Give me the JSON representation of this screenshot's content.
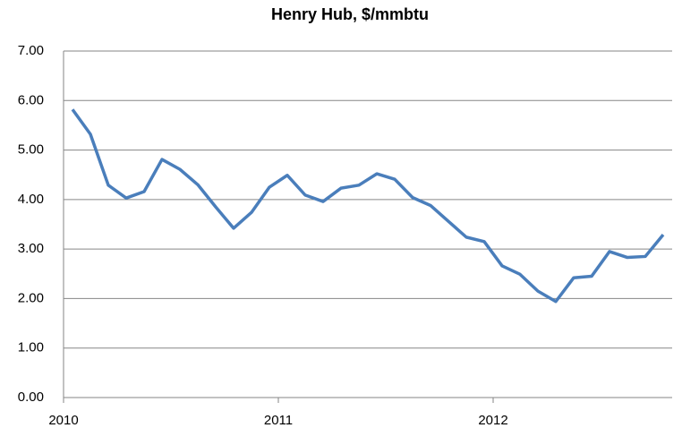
{
  "chart_data": {
    "type": "line",
    "title": "Henry Hub, $/mmbtu",
    "categories": [
      "2010",
      null,
      null,
      null,
      null,
      null,
      null,
      null,
      null,
      null,
      null,
      null,
      "2011",
      null,
      null,
      null,
      null,
      null,
      null,
      null,
      null,
      null,
      null,
      null,
      "2012",
      null,
      null,
      null,
      null,
      null,
      null,
      null,
      null,
      null
    ],
    "series": [
      {
        "name": "Henry Hub",
        "color": "#4a7ebb",
        "values": [
          5.82,
          5.32,
          4.29,
          4.03,
          4.16,
          4.81,
          4.61,
          4.3,
          3.85,
          3.42,
          3.74,
          4.25,
          4.49,
          4.09,
          3.96,
          4.23,
          4.29,
          4.52,
          4.41,
          4.04,
          3.88,
          3.56,
          3.24,
          3.15,
          2.66,
          2.49,
          2.15,
          1.94,
          2.42,
          2.45,
          2.95,
          2.83,
          2.85,
          3.29
        ]
      }
    ],
    "ylim": [
      0,
      7
    ],
    "yticks": [
      {
        "value": 0,
        "label": "0.00"
      },
      {
        "value": 1,
        "label": "1.00"
      },
      {
        "value": 2,
        "label": "2.00"
      },
      {
        "value": 3,
        "label": "3.00"
      },
      {
        "value": 4,
        "label": "4.00"
      },
      {
        "value": 5,
        "label": "5.00"
      },
      {
        "value": 6,
        "label": "6.00"
      },
      {
        "value": 7,
        "label": "7.00"
      }
    ],
    "grid": true
  }
}
